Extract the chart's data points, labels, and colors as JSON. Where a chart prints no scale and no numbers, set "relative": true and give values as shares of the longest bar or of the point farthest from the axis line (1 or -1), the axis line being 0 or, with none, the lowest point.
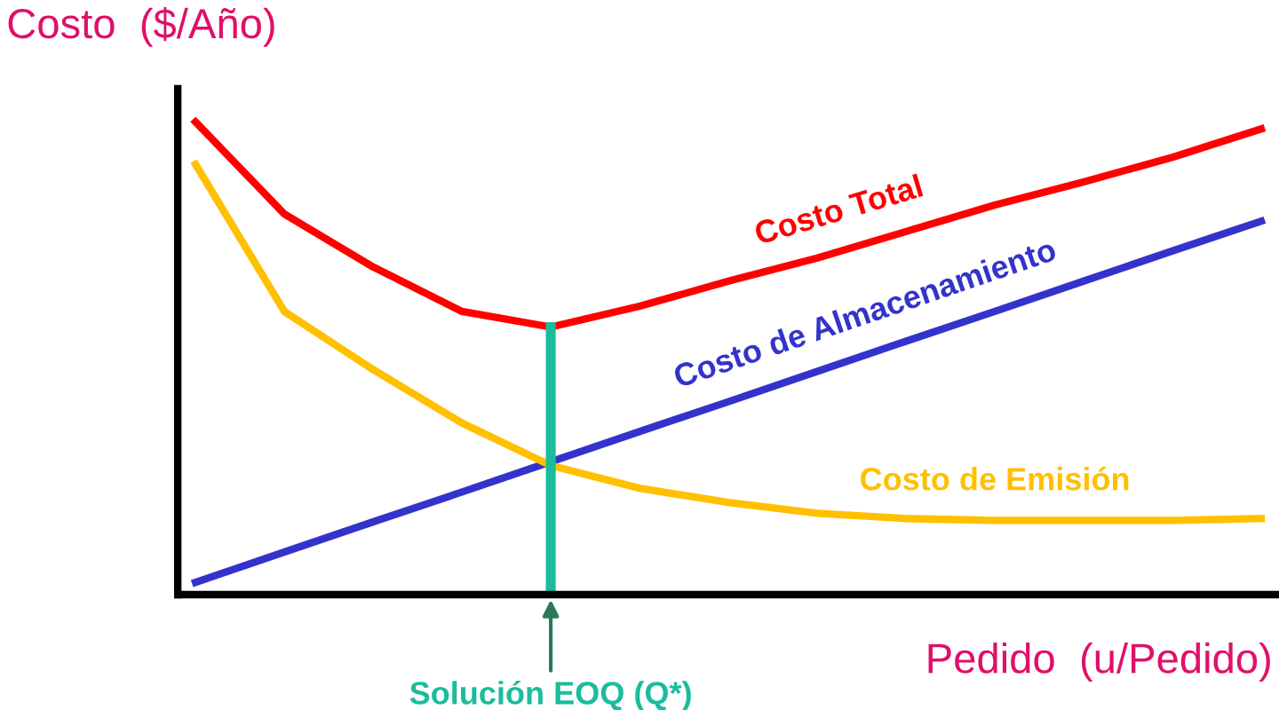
{
  "chart_data": {
    "type": "line",
    "relative": true,
    "xlabel": "Pedido  (u/Pedido)",
    "ylabel": "Costo  ($/Año)",
    "categories": [
      null,
      null,
      null,
      null,
      null,
      null,
      null,
      null,
      null,
      null,
      null,
      null,
      null
    ],
    "series": [
      {
        "name": "Costo Total",
        "color": "#ff0000",
        "values": [
          1.0,
          0.805,
          0.693,
          0.599,
          0.566,
          0.61,
          0.663,
          0.712,
          0.768,
          0.824,
          0.873,
          0.925,
          0.985
        ]
      },
      {
        "name": "Costo de Almacenamiento",
        "color": "#3333cc",
        "values": [
          0.026,
          0.09,
          0.154,
          0.217,
          0.281,
          0.345,
          0.408,
          0.472,
          0.536,
          0.599,
          0.663,
          0.727,
          0.79
        ]
      },
      {
        "name": "Costo de Emisión",
        "color": "#ffc000",
        "values": [
          0.91,
          0.599,
          0.476,
          0.363,
          0.273,
          0.225,
          0.195,
          0.172,
          0.161,
          0.157,
          0.157,
          0.157,
          0.161
        ]
      }
    ],
    "annotations": [
      "Solución EOQ (Q*)"
    ],
    "legend": false,
    "marker": "none",
    "line_style": "solid",
    "tick_labels": false
  }
}
